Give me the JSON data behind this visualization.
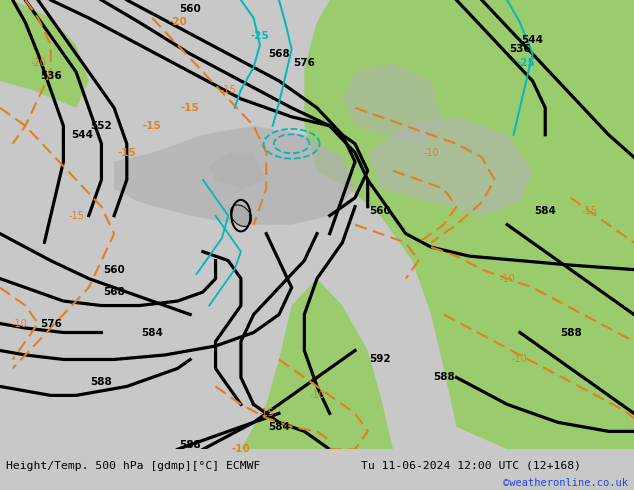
{
  "title_left": "Height/Temp. 500 hPa [gdmp][°C] ECMWF",
  "title_right": "Tu 11-06-2024 12:00 UTC (12+168)",
  "watermark": "©weatheronline.co.uk",
  "bg_gray": "#c8c8c8",
  "bg_light": "#d8d8d8",
  "green1": "#9acc6e",
  "green2": "#b8dc8a",
  "land_gray": "#aaaaaa",
  "land_gray2": "#b8b8b8",
  "orange": "#e08020",
  "cyan": "#00b8b8",
  "black": "#000000",
  "fig_width": 6.34,
  "fig_height": 4.9,
  "dpi": 100
}
